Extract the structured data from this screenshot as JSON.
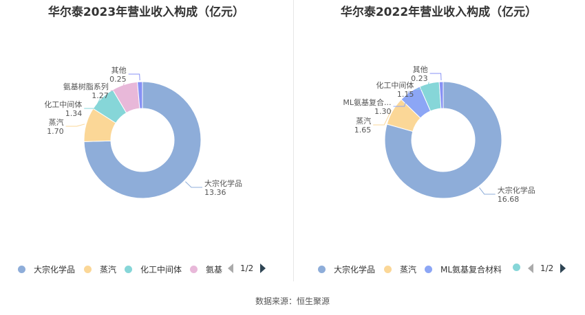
{
  "chart_data": [
    {
      "type": "pie",
      "title": "华尔泰2023年营业收入构成（亿元）",
      "categories": [
        "大宗化学品",
        "蒸汽",
        "化工中间体",
        "氨基树脂系列",
        "其他"
      ],
      "values": [
        13.36,
        1.7,
        1.34,
        1.27,
        0.25
      ],
      "value_labels": [
        "13.36",
        "1.70",
        "1.34",
        "1.27",
        "0.25"
      ],
      "colors": [
        "#8eadd9",
        "#fbd797",
        "#86d6d8",
        "#e8b8d9",
        "#8791f5"
      ],
      "legend": {
        "items": [
          "大宗化学品",
          "蒸汽",
          "化工中间体",
          "氨基"
        ],
        "colors": [
          "#8eadd9",
          "#fbd797",
          "#86d6d8",
          "#e8b8d9"
        ],
        "page": "1/2",
        "position": "bottom"
      }
    },
    {
      "type": "pie",
      "title": "华尔泰2022年营业收入构成（亿元）",
      "categories": [
        "大宗化学品",
        "蒸汽",
        "ML氨基复合...",
        "化工中间体",
        "其他"
      ],
      "values": [
        16.68,
        1.65,
        1.3,
        1.15,
        0.23
      ],
      "value_labels": [
        "16.68",
        "1.65",
        "1.30",
        "1.15",
        "0.23"
      ],
      "colors": [
        "#8eadd9",
        "#fbd797",
        "#8ca6f5",
        "#86d6d8",
        "#8791f5"
      ],
      "legend": {
        "items": [
          "大宗化学品",
          "蒸汽",
          "ML氨基复合材料",
          ""
        ],
        "colors": [
          "#8eadd9",
          "#fbd797",
          "#8ca6f5",
          "#86d6d8"
        ],
        "page": "1/2",
        "position": "bottom"
      }
    }
  ],
  "source_text": "数据来源：恒生聚源"
}
